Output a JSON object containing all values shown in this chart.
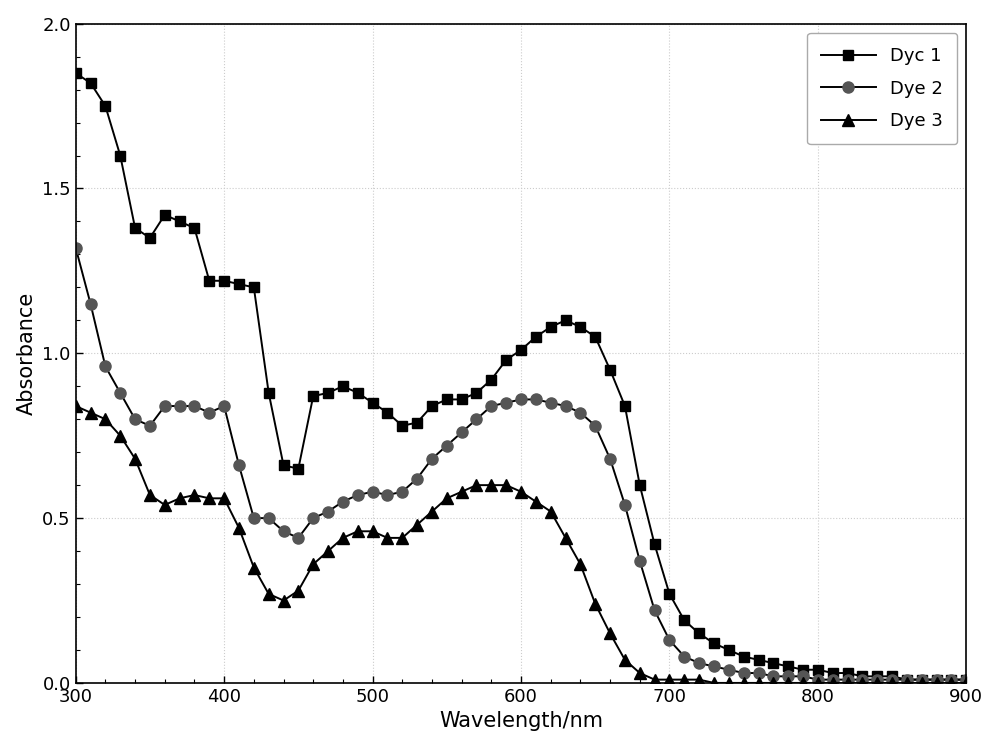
{
  "title": "",
  "xlabel": "Wavelength/nm",
  "ylabel": "Absorbance",
  "xlim": [
    300,
    900
  ],
  "ylim": [
    0.0,
    2.0
  ],
  "xticks": [
    300,
    400,
    500,
    600,
    700,
    800,
    900
  ],
  "yticks": [
    0.0,
    0.5,
    1.0,
    1.5,
    2.0
  ],
  "background_color": "#ffffff",
  "legend_labels": [
    "Dyc 1",
    "Dye 2",
    "Dye 3"
  ],
  "line_color": "#000000",
  "dye1_x": [
    300,
    310,
    320,
    330,
    340,
    350,
    360,
    370,
    380,
    390,
    400,
    410,
    420,
    430,
    440,
    450,
    460,
    470,
    480,
    490,
    500,
    510,
    520,
    530,
    540,
    550,
    560,
    570,
    580,
    590,
    600,
    610,
    620,
    630,
    640,
    650,
    660,
    670,
    680,
    690,
    700,
    710,
    720,
    730,
    740,
    750,
    760,
    770,
    780,
    790,
    800,
    810,
    820,
    830,
    840,
    850,
    860,
    870,
    880,
    890,
    900
  ],
  "dye1_y": [
    1.85,
    1.82,
    1.75,
    1.6,
    1.38,
    1.35,
    1.42,
    1.4,
    1.38,
    1.22,
    1.22,
    1.21,
    1.2,
    0.88,
    0.66,
    0.65,
    0.87,
    0.88,
    0.9,
    0.88,
    0.85,
    0.82,
    0.78,
    0.79,
    0.84,
    0.86,
    0.86,
    0.88,
    0.92,
    0.98,
    1.01,
    1.05,
    1.08,
    1.1,
    1.08,
    1.05,
    0.95,
    0.84,
    0.6,
    0.42,
    0.27,
    0.19,
    0.15,
    0.12,
    0.1,
    0.08,
    0.07,
    0.06,
    0.05,
    0.04,
    0.04,
    0.03,
    0.03,
    0.02,
    0.02,
    0.02,
    0.01,
    0.01,
    0.01,
    0.01,
    0.01
  ],
  "dye2_x": [
    300,
    310,
    320,
    330,
    340,
    350,
    360,
    370,
    380,
    390,
    400,
    410,
    420,
    430,
    440,
    450,
    460,
    470,
    480,
    490,
    500,
    510,
    520,
    530,
    540,
    550,
    560,
    570,
    580,
    590,
    600,
    610,
    620,
    630,
    640,
    650,
    660,
    670,
    680,
    690,
    700,
    710,
    720,
    730,
    740,
    750,
    760,
    770,
    780,
    790,
    800,
    810,
    820,
    830,
    840,
    850,
    860,
    870,
    880,
    890,
    900
  ],
  "dye2_y": [
    1.32,
    1.15,
    0.96,
    0.88,
    0.8,
    0.78,
    0.84,
    0.84,
    0.84,
    0.82,
    0.84,
    0.66,
    0.5,
    0.5,
    0.46,
    0.44,
    0.5,
    0.52,
    0.55,
    0.57,
    0.58,
    0.57,
    0.58,
    0.62,
    0.68,
    0.72,
    0.76,
    0.8,
    0.84,
    0.85,
    0.86,
    0.86,
    0.85,
    0.84,
    0.82,
    0.78,
    0.68,
    0.54,
    0.37,
    0.22,
    0.13,
    0.08,
    0.06,
    0.05,
    0.04,
    0.03,
    0.03,
    0.02,
    0.02,
    0.02,
    0.01,
    0.01,
    0.01,
    0.01,
    0.01,
    0.01,
    0.01,
    0.01,
    0.01,
    0.01,
    0.01
  ],
  "dye3_x": [
    300,
    310,
    320,
    330,
    340,
    350,
    360,
    370,
    380,
    390,
    400,
    410,
    420,
    430,
    440,
    450,
    460,
    470,
    480,
    490,
    500,
    510,
    520,
    530,
    540,
    550,
    560,
    570,
    580,
    590,
    600,
    610,
    620,
    630,
    640,
    650,
    660,
    670,
    680,
    690,
    700,
    710,
    720,
    730,
    740,
    750,
    760,
    770,
    780,
    790,
    800,
    810,
    820,
    830,
    840,
    850,
    860,
    870,
    880,
    890,
    900
  ],
  "dye3_y": [
    0.84,
    0.82,
    0.8,
    0.75,
    0.68,
    0.57,
    0.54,
    0.56,
    0.57,
    0.56,
    0.56,
    0.47,
    0.35,
    0.27,
    0.25,
    0.28,
    0.36,
    0.4,
    0.44,
    0.46,
    0.46,
    0.44,
    0.44,
    0.48,
    0.52,
    0.56,
    0.58,
    0.6,
    0.6,
    0.6,
    0.58,
    0.55,
    0.52,
    0.44,
    0.36,
    0.24,
    0.15,
    0.07,
    0.03,
    0.01,
    0.01,
    0.01,
    0.01,
    0.0,
    0.0,
    0.0,
    0.0,
    0.0,
    0.0,
    0.0,
    0.0,
    0.0,
    0.0,
    0.0,
    0.0,
    0.0,
    0.0,
    0.0,
    0.0,
    0.0,
    0.0
  ]
}
